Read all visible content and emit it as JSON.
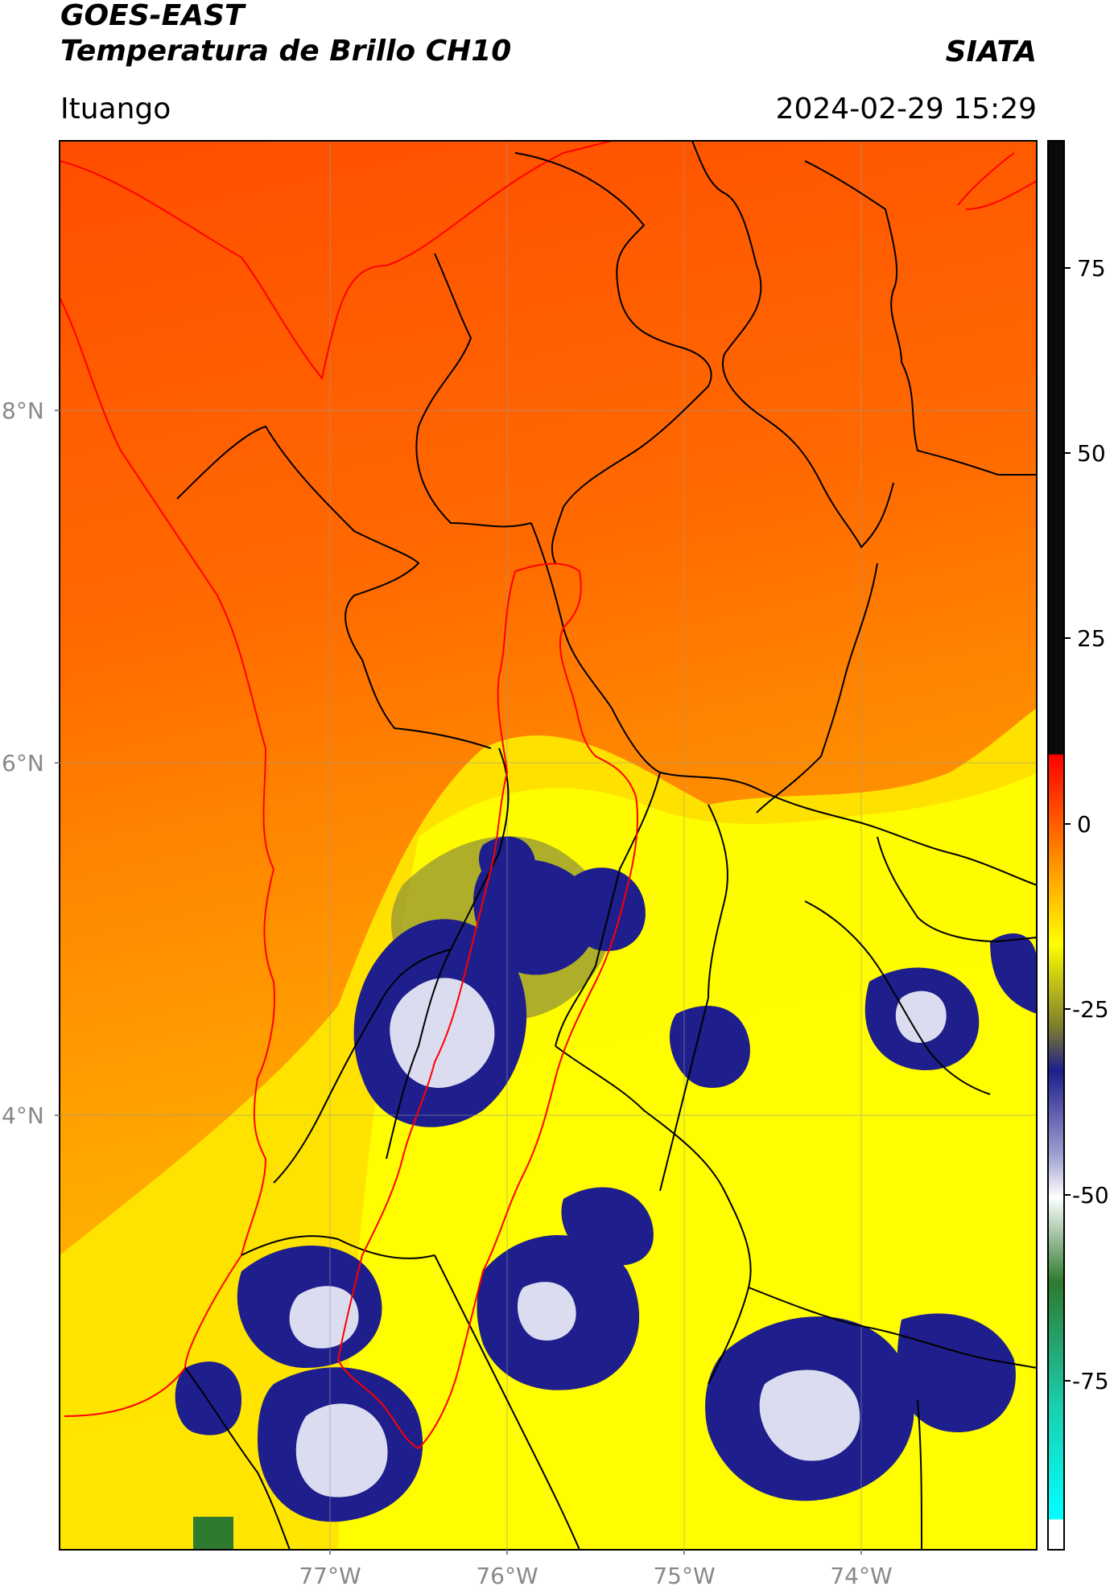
{
  "header": {
    "satellite": "GOES-EAST",
    "product": "Temperatura de Brillo CH10",
    "org": "SIATA",
    "region": "Ituango",
    "datetime": "2024-02-29 15:29"
  },
  "axes": {
    "lat_ticks": [
      "8°N",
      "6°N",
      "4°N"
    ],
    "lon_ticks": [
      "77°W",
      "76°W",
      "75°W",
      "74°W"
    ]
  },
  "colorbar": {
    "ticks": [
      "75",
      "50",
      "25",
      "0",
      "-25",
      "-50",
      "-75"
    ],
    "ramp": [
      "#0a0a0a",
      "#0a0a0a",
      "#ff0000",
      "#ff7a00",
      "#ffff00",
      "#7a7a30",
      "#1e1e8c",
      "#a0a0d0",
      "#ffffff",
      "#2e7a2e",
      "#1ad0b0",
      "#00ffff",
      "#ffffff"
    ]
  },
  "colors": {
    "warm": "#ff5a00",
    "mid": "#ff9a00",
    "yellow": "#ffee00",
    "cold": "#1e1e8c",
    "coldest": "#e6e6f2",
    "coast": "#ff0000",
    "border": "#000000"
  }
}
